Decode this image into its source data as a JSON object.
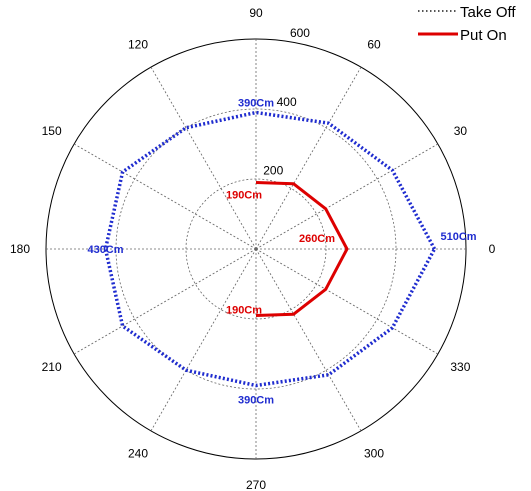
{
  "chart_data": {
    "type": "polar-line",
    "angles_deg": [
      0,
      30,
      60,
      90,
      120,
      150,
      180,
      210,
      240,
      270,
      300,
      330
    ],
    "radius_ticks": [
      200,
      400,
      600
    ],
    "radius_max": 600,
    "grid": true,
    "angle_labels": [
      "0",
      "30",
      "60",
      "90",
      "120",
      "150",
      "180",
      "210",
      "240",
      "270",
      "300",
      "330"
    ],
    "radius_labels": [
      "200",
      "400",
      "600"
    ],
    "legend": {
      "placement": "top-right"
    },
    "series": [
      {
        "name": "Take Off",
        "color": "#1f2ccf",
        "line_style": "dotted",
        "values": [
          510,
          450,
          415,
          390,
          400,
          440,
          430,
          440,
          400,
          390,
          415,
          450
        ],
        "labels": [
          {
            "angle": 0,
            "text": "510Cm"
          },
          {
            "angle": 90,
            "text": "390Cm"
          },
          {
            "angle": 180,
            "text": "430Cm"
          },
          {
            "angle": 270,
            "text": "390Cm"
          }
        ]
      },
      {
        "name": "Put On",
        "color": "#dd0000",
        "line_style": "solid",
        "values": [
          260,
          230,
          215,
          190,
          0,
          0,
          0,
          0,
          0,
          190,
          215,
          230
        ],
        "path_angles_deg": [
          90,
          60,
          30,
          0,
          330,
          300,
          270
        ],
        "labels": [
          {
            "angle": 0,
            "text": "260Cm"
          },
          {
            "angle": 90,
            "text": "190Cm"
          },
          {
            "angle": 270,
            "text": "190Cm"
          }
        ]
      }
    ]
  }
}
